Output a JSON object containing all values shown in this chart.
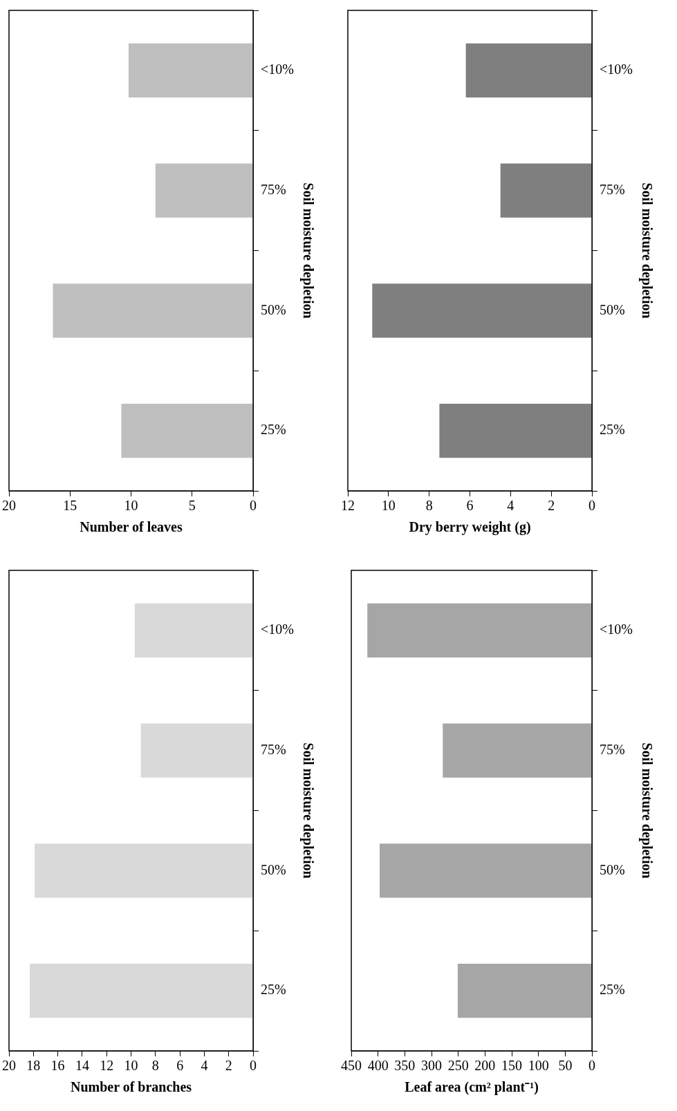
{
  "chart_data": [
    {
      "type": "bar",
      "orientation": "horizontal",
      "categories": [
        "<10%",
        "75%",
        "50%",
        "25%"
      ],
      "values": [
        10.2,
        8.0,
        16.4,
        10.8
      ],
      "color": "#bfbfbf",
      "xlim": [
        20,
        0
      ],
      "xticks": [
        20,
        15,
        10,
        5,
        0
      ],
      "xlabel": "Number of leaves",
      "ylabel": "Soil moisture depletion",
      "grid": false,
      "legend": false
    },
    {
      "type": "bar",
      "orientation": "horizontal",
      "categories": [
        "<10%",
        "75%",
        "50%",
        "25%"
      ],
      "values": [
        6.2,
        4.5,
        10.8,
        7.5
      ],
      "color": "#7f7f7f",
      "xlim": [
        12,
        0
      ],
      "xticks": [
        12,
        10,
        8,
        6,
        4,
        2,
        0
      ],
      "xlabel": "Dry berry weight (g)",
      "ylabel": "Soil moisture depletion",
      "grid": false,
      "legend": false
    },
    {
      "type": "bar",
      "orientation": "horizontal",
      "categories": [
        "<10%",
        "75%",
        "50%",
        "25%"
      ],
      "values": [
        9.7,
        9.2,
        17.9,
        18.3
      ],
      "color": "#d9d9d9",
      "xlim": [
        20,
        0
      ],
      "xticks": [
        20,
        18,
        16,
        14,
        12,
        10,
        8,
        6,
        4,
        2,
        0
      ],
      "xlabel": "Number of branches",
      "ylabel": "Soil moisture depletion",
      "grid": false,
      "legend": false
    },
    {
      "type": "bar",
      "orientation": "horizontal",
      "categories": [
        "<10%",
        "75%",
        "50%",
        "25%"
      ],
      "values": [
        420,
        279,
        397,
        251
      ],
      "color": "#a6a6a6",
      "xlim": [
        450,
        0
      ],
      "xticks": [
        450,
        400,
        350,
        300,
        250,
        200,
        150,
        100,
        50,
        0
      ],
      "xlabel": "Leaf area (cm² plant⁻¹)",
      "ylabel": "Soil moisture depletion",
      "grid": false,
      "legend": false
    }
  ]
}
